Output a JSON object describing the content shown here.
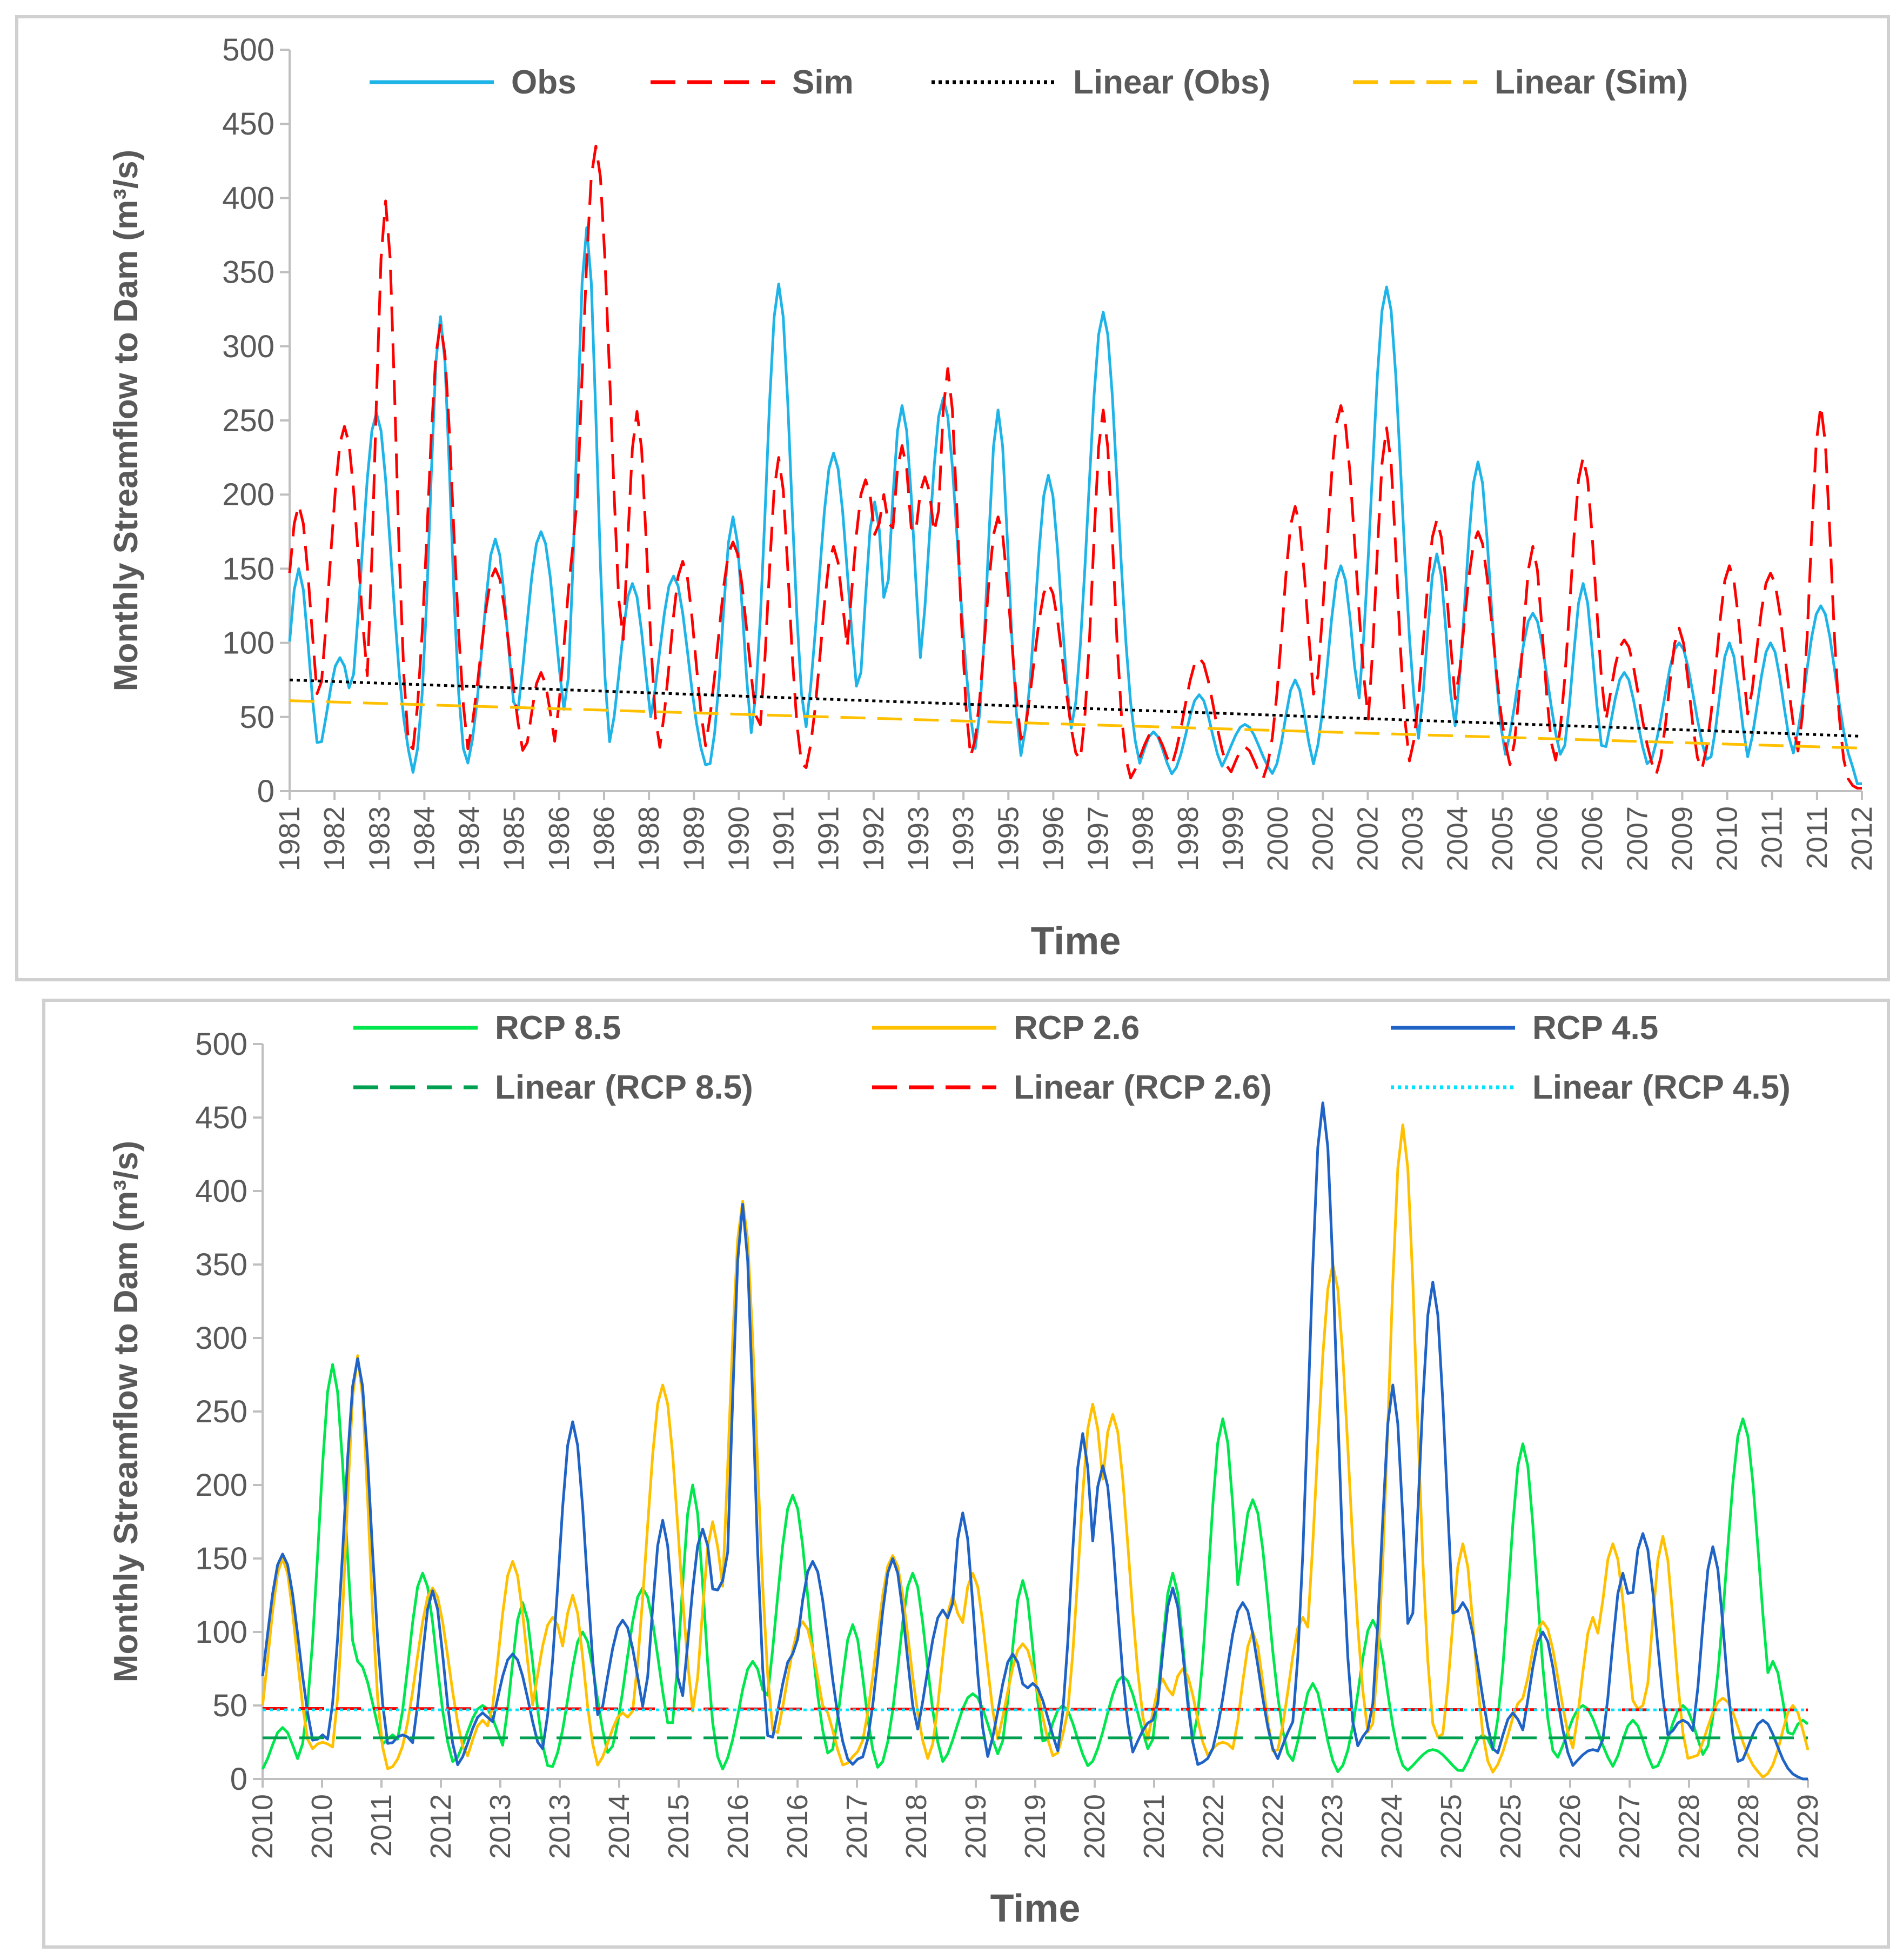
{
  "chart_data": [
    {
      "type": "line",
      "title": "",
      "ylabel": "Monthly Streamflow to Dam (m³/s)",
      "xlabel": "Time",
      "ylim": [
        0,
        500
      ],
      "yticks": [
        0,
        50,
        100,
        150,
        200,
        250,
        300,
        350,
        400,
        450,
        500
      ],
      "x_tick_labels": [
        "1981",
        "1982",
        "1983",
        "1984",
        "1984",
        "1985",
        "1986",
        "1986",
        "1988",
        "1989",
        "1990",
        "1991",
        "1991",
        "1992",
        "1993",
        "1993",
        "1995",
        "1996",
        "1997",
        "1998",
        "1998",
        "1999",
        "2000",
        "2002",
        "2002",
        "2003",
        "2004",
        "2005",
        "2006",
        "2006",
        "2007",
        "2009",
        "2010",
        "2011",
        "2011",
        "2012"
      ],
      "legend_position": "top",
      "legend": [
        {
          "name": "Obs",
          "color": "#1FB4E8",
          "style": "solid"
        },
        {
          "name": "Sim",
          "color": "#FF0000",
          "style": "dashed"
        },
        {
          "name": "Linear (Obs)",
          "color": "#000000",
          "style": "dotted"
        },
        {
          "name": "Linear (Sim)",
          "color": "#FFC000",
          "style": "dashed"
        }
      ],
      "series": [
        {
          "name": "Obs",
          "color": "#1FB4E8",
          "peaks": [
            [
              2,
              150
            ],
            [
              11,
              90
            ],
            [
              19,
              255
            ],
            [
              33,
              320
            ],
            [
              45,
              170
            ],
            [
              55,
              175
            ],
            [
              65,
              380
            ],
            [
              75,
              140
            ],
            [
              84,
              145
            ],
            [
              97,
              185
            ],
            [
              107,
              342
            ],
            [
              119,
              228
            ],
            [
              128,
              195
            ],
            [
              134,
              260
            ],
            [
              143,
              265
            ],
            [
              155,
              257
            ],
            [
              166,
              213
            ],
            [
              178,
              323
            ],
            [
              189,
              40
            ],
            [
              199,
              65
            ],
            [
              209,
              45
            ],
            [
              220,
              75
            ],
            [
              230,
              152
            ],
            [
              240,
              340
            ],
            [
              251,
              160
            ],
            [
              260,
              222
            ],
            [
              272,
              120
            ],
            [
              283,
              140
            ],
            [
              292,
              80
            ],
            [
              304,
              100
            ],
            [
              315,
              100
            ],
            [
              324,
              100
            ],
            [
              335,
              125
            ]
          ],
          "baseline": 5
        },
        {
          "name": "Sim",
          "color": "#FF0000",
          "peaks": [
            [
              2,
              193
            ],
            [
              12,
              246
            ],
            [
              21,
              398
            ],
            [
              33,
              315
            ],
            [
              45,
              150
            ],
            [
              55,
              80
            ],
            [
              63,
              178
            ],
            [
              67,
              435
            ],
            [
              76,
              256
            ],
            [
              86,
              155
            ],
            [
              97,
              168
            ],
            [
              107,
              225
            ],
            [
              119,
              165
            ],
            [
              126,
              210
            ],
            [
              130,
              200
            ],
            [
              134,
              233
            ],
            [
              139,
              212
            ],
            [
              144,
              285
            ],
            [
              155,
              185
            ],
            [
              166,
              140
            ],
            [
              178,
              257
            ],
            [
              189,
              40
            ],
            [
              199,
              90
            ],
            [
              209,
              30
            ],
            [
              220,
              192
            ],
            [
              230,
              260
            ],
            [
              240,
              245
            ],
            [
              251,
              183
            ],
            [
              260,
              175
            ],
            [
              272,
              165
            ],
            [
              283,
              225
            ],
            [
              292,
              102
            ],
            [
              304,
              110
            ],
            [
              315,
              152
            ],
            [
              324,
              147
            ],
            [
              335,
              260
            ]
          ],
          "baseline": 2
        },
        {
          "name": "Linear (Obs)",
          "color": "#000000",
          "start": 75,
          "end": 37
        },
        {
          "name": "Linear (Sim)",
          "color": "#FFC000",
          "start": 61,
          "end": 29
        }
      ],
      "n_points": 345
    },
    {
      "type": "line",
      "title": "",
      "ylabel": "Monthly Streamflow to Dam (m³/s)",
      "xlabel": "Time",
      "ylim": [
        0,
        500
      ],
      "yticks": [
        0,
        50,
        100,
        150,
        200,
        250,
        300,
        350,
        400,
        450,
        500
      ],
      "x_tick_labels": [
        "2010",
        "2010",
        "2011",
        "2012",
        "2013",
        "2013",
        "2014",
        "2015",
        "2016",
        "2016",
        "2017",
        "2018",
        "2019",
        "2019",
        "2020",
        "2021",
        "2022",
        "2022",
        "2023",
        "2024",
        "2025",
        "2025",
        "2026",
        "2027",
        "2028",
        "2028",
        "2029"
      ],
      "legend_position": "top",
      "legend": [
        {
          "name": "RCP 8.5",
          "color": "#00E64D",
          "style": "solid"
        },
        {
          "name": "RCP 2.6",
          "color": "#FFC000",
          "style": "solid"
        },
        {
          "name": "RCP 4.5",
          "color": "#1F63C6",
          "style": "solid"
        },
        {
          "name": "Linear (RCP 8.5)",
          "color": "#00A050",
          "style": "dashed"
        },
        {
          "name": "Linear (RCP 2.6)",
          "color": "#FF0000",
          "style": "dashed"
        },
        {
          "name": "Linear (RCP 4.5)",
          "color": "#00E5FF",
          "style": "dotted"
        }
      ],
      "series": [
        {
          "name": "RCP 8.5",
          "color": "#00E64D",
          "peaks": [
            [
              4,
              35
            ],
            [
              14,
              282
            ],
            [
              19,
              80
            ],
            [
              26,
              30
            ],
            [
              32,
              140
            ],
            [
              44,
              50
            ],
            [
              52,
              120
            ],
            [
              64,
              100
            ],
            [
              76,
              130
            ],
            [
              86,
              200
            ],
            [
              98,
              80
            ],
            [
              106,
              193
            ],
            [
              118,
              105
            ],
            [
              130,
              140
            ],
            [
              142,
              58
            ],
            [
              152,
              135
            ],
            [
              160,
              50
            ],
            [
              172,
              70
            ],
            [
              182,
              140
            ],
            [
              192,
              245
            ],
            [
              198,
              190
            ],
            [
              210,
              65
            ],
            [
              222,
              108
            ],
            [
              234,
              20
            ],
            [
              244,
              30
            ],
            [
              252,
              228
            ],
            [
              264,
              50
            ],
            [
              274,
              40
            ],
            [
              284,
              50
            ],
            [
              296,
              245
            ],
            [
              302,
              80
            ],
            [
              308,
              40
            ]
          ],
          "baseline": 0
        },
        {
          "name": "RCP 2.6",
          "color": "#FFC000",
          "peaks": [
            [
              4,
              150
            ],
            [
              12,
              25
            ],
            [
              19,
              288
            ],
            [
              30,
              25
            ],
            [
              34,
              130
            ],
            [
              44,
              40
            ],
            [
              50,
              148
            ],
            [
              58,
              110
            ],
            [
              62,
              125
            ],
            [
              72,
              45
            ],
            [
              80,
              268
            ],
            [
              90,
              175
            ],
            [
              96,
              393
            ],
            [
              108,
              107
            ],
            [
              112,
              50
            ],
            [
              120,
              20
            ],
            [
              126,
              152
            ],
            [
              138,
              125
            ],
            [
              142,
              140
            ],
            [
              152,
              92
            ],
            [
              162,
              45
            ],
            [
              166,
              255
            ],
            [
              170,
              248
            ],
            [
              180,
              68
            ],
            [
              184,
              75
            ],
            [
              192,
              25
            ],
            [
              198,
              100
            ],
            [
              208,
              110
            ],
            [
              214,
              350
            ],
            [
              224,
              30
            ],
            [
              228,
              445
            ],
            [
              236,
              30
            ],
            [
              240,
              160
            ],
            [
              252,
              55
            ],
            [
              256,
              107
            ],
            [
              266,
              110
            ],
            [
              270,
              160
            ],
            [
              276,
              50
            ],
            [
              280,
              165
            ],
            [
              286,
              15
            ],
            [
              292,
              55
            ],
            [
              306,
              50
            ]
          ],
          "baseline": 0
        },
        {
          "name": "RCP 4.5",
          "color": "#1F63C6",
          "peaks": [
            [
              4,
              153
            ],
            [
              12,
              30
            ],
            [
              19,
              286
            ],
            [
              28,
              30
            ],
            [
              34,
              128
            ],
            [
              44,
              45
            ],
            [
              50,
              85
            ],
            [
              58,
              15
            ],
            [
              62,
              243
            ],
            [
              72,
              108
            ],
            [
              80,
              176
            ],
            [
              88,
              170
            ],
            [
              92,
              135
            ],
            [
              96,
              391
            ],
            [
              106,
              85
            ],
            [
              110,
              148
            ],
            [
              120,
              15
            ],
            [
              126,
              150
            ],
            [
              136,
              115
            ],
            [
              140,
              181
            ],
            [
              150,
              85
            ],
            [
              154,
              65
            ],
            [
              164,
              235
            ],
            [
              168,
              213
            ],
            [
              178,
              40
            ],
            [
              182,
              130
            ],
            [
              190,
              15
            ],
            [
              196,
              120
            ],
            [
              206,
              35
            ],
            [
              212,
              460
            ],
            [
              222,
              35
            ],
            [
              226,
              268
            ],
            [
              234,
              338
            ],
            [
              240,
              120
            ],
            [
              250,
              45
            ],
            [
              256,
              100
            ],
            [
              266,
              20
            ],
            [
              272,
              140
            ],
            [
              276,
              167
            ],
            [
              284,
              40
            ],
            [
              290,
              158
            ],
            [
              300,
              40
            ]
          ],
          "baseline": 0
        },
        {
          "name": "Linear (RCP 8.5)",
          "color": "#00A050",
          "start": 28,
          "end": 28
        },
        {
          "name": "Linear (RCP 2.6)",
          "color": "#FF0000",
          "start": 48,
          "end": 47
        },
        {
          "name": "Linear (RCP 4.5)",
          "color": "#00E5FF",
          "start": 47,
          "end": 47
        }
      ],
      "n_points": 310
    }
  ]
}
